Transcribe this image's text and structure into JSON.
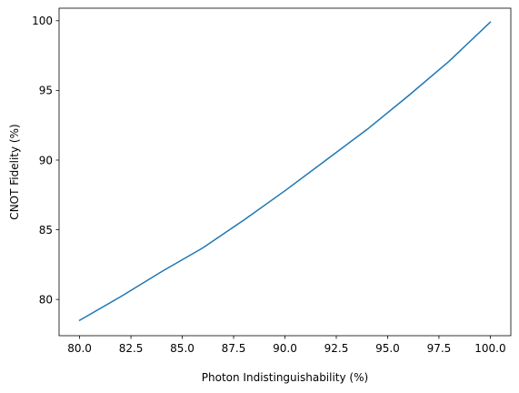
{
  "chart_data": {
    "type": "line",
    "title": "",
    "xlabel": "Photon Indistinguishability (%)",
    "ylabel": "CNOT Fidelity (%)",
    "xlim": [
      79.0,
      101.0
    ],
    "ylim": [
      77.4,
      100.9
    ],
    "xticks": [
      80.0,
      82.5,
      85.0,
      87.5,
      90.0,
      92.5,
      95.0,
      97.5,
      100.0
    ],
    "xtick_labels": [
      "80.0",
      "82.5",
      "85.0",
      "87.5",
      "90.0",
      "92.5",
      "95.0",
      "97.5",
      "100.0"
    ],
    "yticks": [
      80,
      85,
      90,
      95,
      100
    ],
    "ytick_labels": [
      "80",
      "85",
      "90",
      "95",
      "100"
    ],
    "grid": false,
    "series": [
      {
        "color": "#1f77b4",
        "x": [
          80,
          82,
          84,
          86,
          88,
          90,
          92,
          94,
          96,
          98,
          100
        ],
        "y": [
          78.5,
          80.2,
          82.0,
          83.7,
          85.7,
          87.8,
          90.0,
          92.2,
          94.6,
          97.1,
          99.9
        ]
      }
    ]
  }
}
